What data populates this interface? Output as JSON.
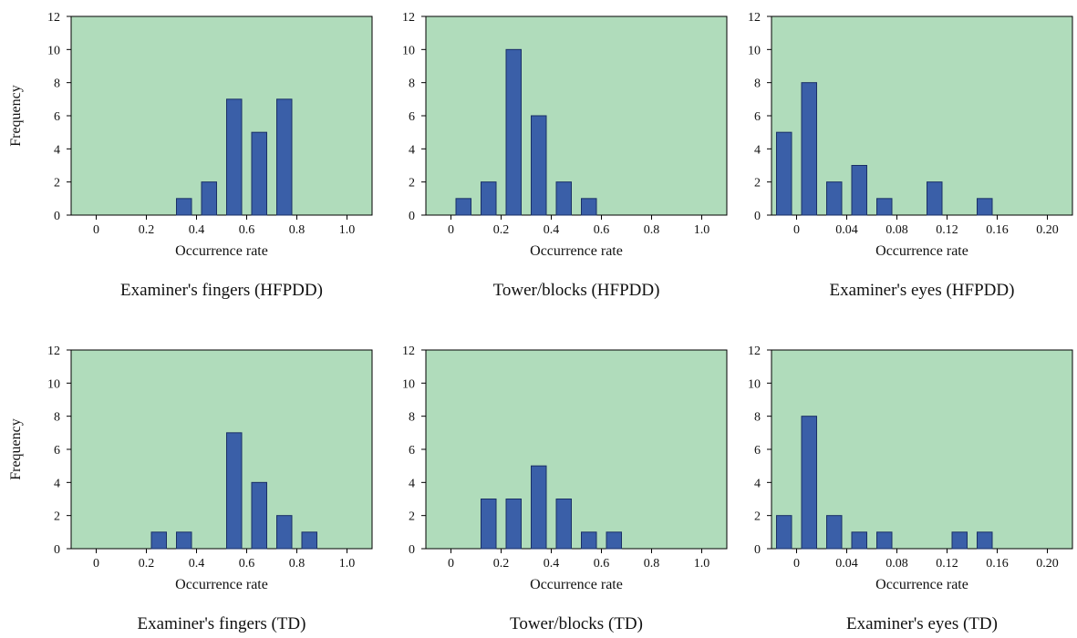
{
  "figure": {
    "colors": {
      "plot_background": "#b0dcbb",
      "bar_fill": "#3a5fa8",
      "bar_stroke": "#1a2f66",
      "axis": "#000000"
    }
  },
  "chart_data": [
    {
      "type": "bar",
      "title": "Examiner's fingers (HFPDD)",
      "xlabel": "Occurrence rate",
      "ylabel": "Frequency",
      "xlim": [
        -0.1,
        1.1
      ],
      "ylim": [
        0,
        12
      ],
      "xticks": [
        "0",
        "0.2",
        "0.4",
        "0.6",
        "0.8",
        "1.0"
      ],
      "yticks": [
        "0",
        "2",
        "4",
        "6",
        "8",
        "10",
        "12"
      ],
      "x": [
        0.35,
        0.45,
        0.55,
        0.65,
        0.75
      ],
      "values": [
        1,
        2,
        7,
        5,
        7
      ]
    },
    {
      "type": "bar",
      "title": "Tower/blocks (HFPDD)",
      "xlabel": "Occurrence rate",
      "ylabel": "",
      "xlim": [
        -0.1,
        1.1
      ],
      "ylim": [
        0,
        12
      ],
      "xticks": [
        "0",
        "0.2",
        "0.4",
        "0.6",
        "0.8",
        "1.0"
      ],
      "yticks": [
        "0",
        "2",
        "4",
        "6",
        "8",
        "10",
        "12"
      ],
      "x": [
        0.05,
        0.15,
        0.25,
        0.35,
        0.45,
        0.55
      ],
      "values": [
        1,
        2,
        10,
        6,
        2,
        1
      ]
    },
    {
      "type": "bar",
      "title": "Examiner's eyes (HFPDD)",
      "xlabel": "Occurrence rate",
      "ylabel": "",
      "xlim": [
        -0.02,
        0.22
      ],
      "ylim": [
        0,
        12
      ],
      "xticks": [
        "0",
        "0.04",
        "0.08",
        "0.12",
        "0.16",
        "0.20"
      ],
      "yticks": [
        "0",
        "2",
        "4",
        "6",
        "8",
        "10",
        "12"
      ],
      "x": [
        -0.01,
        0.01,
        0.03,
        0.05,
        0.07,
        0.11,
        0.15
      ],
      "values": [
        5,
        8,
        2,
        3,
        1,
        2,
        1
      ]
    },
    {
      "type": "bar",
      "title": "Examiner's fingers (TD)",
      "xlabel": "Occurrence rate",
      "ylabel": "Frequency",
      "xlim": [
        -0.1,
        1.1
      ],
      "ylim": [
        0,
        12
      ],
      "xticks": [
        "0",
        "0.2",
        "0.4",
        "0.6",
        "0.8",
        "1.0"
      ],
      "yticks": [
        "0",
        "2",
        "4",
        "6",
        "8",
        "10",
        "12"
      ],
      "x": [
        0.25,
        0.35,
        0.55,
        0.65,
        0.75,
        0.85
      ],
      "values": [
        1,
        1,
        7,
        4,
        2,
        1
      ]
    },
    {
      "type": "bar",
      "title": "Tower/blocks (TD)",
      "xlabel": "Occurrence rate",
      "ylabel": "",
      "xlim": [
        -0.1,
        1.1
      ],
      "ylim": [
        0,
        12
      ],
      "xticks": [
        "0",
        "0.2",
        "0.4",
        "0.6",
        "0.8",
        "1.0"
      ],
      "yticks": [
        "0",
        "2",
        "4",
        "6",
        "8",
        "10",
        "12"
      ],
      "x": [
        0.15,
        0.25,
        0.35,
        0.45,
        0.55,
        0.65
      ],
      "values": [
        3,
        3,
        5,
        3,
        1,
        1
      ]
    },
    {
      "type": "bar",
      "title": "Examiner's eyes (TD)",
      "xlabel": "Occurrence rate",
      "ylabel": "",
      "xlim": [
        -0.02,
        0.22
      ],
      "ylim": [
        0,
        12
      ],
      "xticks": [
        "0",
        "0.04",
        "0.08",
        "0.12",
        "0.16",
        "0.20"
      ],
      "yticks": [
        "0",
        "2",
        "4",
        "6",
        "8",
        "10",
        "12"
      ],
      "x": [
        -0.01,
        0.01,
        0.03,
        0.05,
        0.07,
        0.13,
        0.15
      ],
      "values": [
        2,
        8,
        2,
        1,
        1,
        1,
        1
      ]
    }
  ]
}
